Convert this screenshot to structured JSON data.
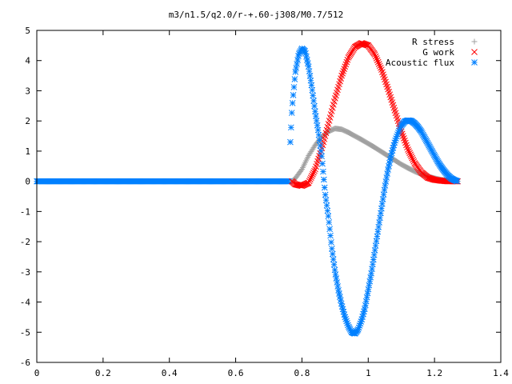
{
  "chart_data": {
    "type": "scatter",
    "title": "m3/n1.5/q2.0/r-+.60-j308/M0.7/512",
    "xlabel": "",
    "ylabel": "",
    "xlim": [
      0,
      1.4
    ],
    "ylim": [
      -6,
      5
    ],
    "x_ticks": [
      "0",
      "0.2",
      "0.4",
      "0.6",
      "0.8",
      "1",
      "1.2",
      "1.4"
    ],
    "y_ticks": [
      "5",
      "4",
      "3",
      "2",
      "1",
      "0",
      "-1",
      "-2",
      "-3",
      "-4",
      "-5",
      "-6"
    ],
    "grid": false,
    "legend_position": "top-right",
    "series": [
      {
        "name": "R stress",
        "marker": "plus",
        "color": "#a0a0a0",
        "x": [
          0.77,
          0.78,
          0.8,
          0.82,
          0.84,
          0.86,
          0.88,
          0.9,
          0.92,
          0.94,
          0.96,
          0.98,
          1.0,
          1.02,
          1.04,
          1.06,
          1.08,
          1.1,
          1.12,
          1.14,
          1.16,
          1.18,
          1.2,
          1.22,
          1.24,
          1.26,
          1.27
        ],
        "y": [
          0.0,
          0.1,
          0.4,
          0.85,
          1.2,
          1.48,
          1.65,
          1.75,
          1.72,
          1.62,
          1.5,
          1.38,
          1.25,
          1.12,
          0.98,
          0.84,
          0.7,
          0.56,
          0.44,
          0.33,
          0.24,
          0.16,
          0.1,
          0.05,
          0.02,
          0.01,
          0.0
        ]
      },
      {
        "name": "G work",
        "marker": "cross",
        "color": "#ff0000",
        "x": [
          0.77,
          0.78,
          0.8,
          0.82,
          0.84,
          0.86,
          0.88,
          0.9,
          0.92,
          0.94,
          0.96,
          0.98,
          1.0,
          1.02,
          1.04,
          1.06,
          1.08,
          1.1,
          1.12,
          1.14,
          1.16,
          1.18,
          1.2,
          1.22,
          1.24,
          1.26,
          1.27
        ],
        "y": [
          0.0,
          -0.1,
          -0.15,
          -0.05,
          0.4,
          1.1,
          1.9,
          2.75,
          3.5,
          4.1,
          4.45,
          4.58,
          4.5,
          4.2,
          3.7,
          3.05,
          2.35,
          1.65,
          1.05,
          0.6,
          0.3,
          0.12,
          0.05,
          0.02,
          0.0,
          0.0,
          0.0
        ]
      },
      {
        "name": "Acoustic flux",
        "marker": "star",
        "color": "#0080ff",
        "x": [
          0.765,
          0.77,
          0.78,
          0.79,
          0.8,
          0.81,
          0.82,
          0.83,
          0.84,
          0.85,
          0.86,
          0.87,
          0.88,
          0.89,
          0.9,
          0.91,
          0.92,
          0.93,
          0.94,
          0.95,
          0.96,
          0.97,
          0.98,
          0.99,
          1.0,
          1.01,
          1.02,
          1.03,
          1.04,
          1.05,
          1.06,
          1.07,
          1.08,
          1.09,
          1.1,
          1.11,
          1.12,
          1.13,
          1.14,
          1.15,
          1.16,
          1.17,
          1.18,
          1.19,
          1.2,
          1.21,
          1.22,
          1.23,
          1.24,
          1.25,
          1.26,
          1.27
        ],
        "y": [
          1.3,
          2.4,
          3.6,
          4.2,
          4.4,
          4.3,
          3.8,
          3.1,
          2.3,
          1.6,
          0.8,
          -0.4,
          -1.2,
          -2.2,
          -3.0,
          -3.6,
          -4.1,
          -4.5,
          -4.8,
          -5.0,
          -5.05,
          -4.9,
          -4.6,
          -4.2,
          -3.6,
          -3.0,
          -2.3,
          -1.6,
          -0.9,
          -0.2,
          0.4,
          0.9,
          1.3,
          1.6,
          1.85,
          1.98,
          2.02,
          2.0,
          1.92,
          1.8,
          1.65,
          1.45,
          1.25,
          1.05,
          0.85,
          0.65,
          0.48,
          0.33,
          0.2,
          0.1,
          0.04,
          0.0
        ]
      }
    ]
  }
}
